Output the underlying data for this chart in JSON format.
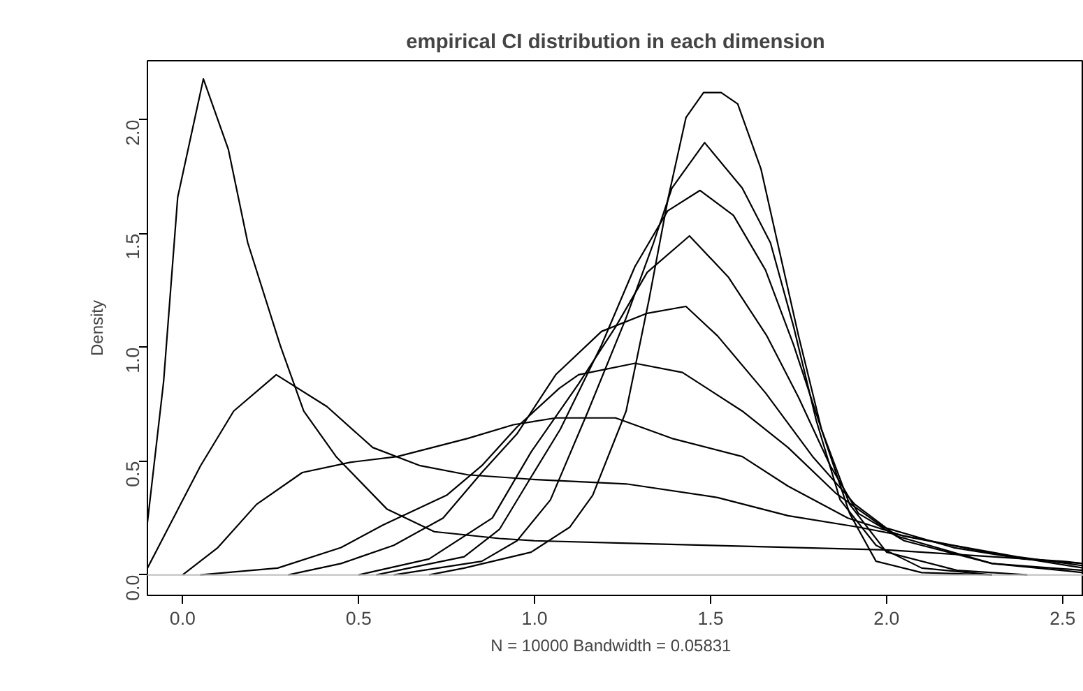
{
  "chart_data": {
    "type": "line",
    "title": "empirical CI distribution in each dimension",
    "xlabel": "N = 10000   Bandwidth = 0.05831",
    "ylabel": "Density",
    "xlim": [
      -0.1,
      2.56
    ],
    "ylim": [
      -0.09,
      2.26
    ],
    "xticks": [
      {
        "value": 0,
        "label": "0.0"
      },
      {
        "value": 0.5,
        "label": "0.5"
      },
      {
        "value": 1,
        "label": "1.0"
      },
      {
        "value": 1.5,
        "label": "1.5"
      },
      {
        "value": 2,
        "label": "2.0"
      },
      {
        "value": 2.5,
        "label": "2.5"
      }
    ],
    "yticks": [
      {
        "value": 0,
        "label": "0.0"
      },
      {
        "value": 0.5,
        "label": "0.5"
      },
      {
        "value": 1,
        "label": "1.0"
      },
      {
        "value": 1.5,
        "label": "1.5"
      },
      {
        "value": 2,
        "label": "2.0"
      }
    ],
    "grid": false,
    "line_style": "solid",
    "marker": "none",
    "ref_lines": [
      {
        "axis": "y",
        "value": 0,
        "color": "#bebebe"
      }
    ],
    "series": [
      {
        "color": "#000000",
        "x": [
          -0.1,
          -0.054,
          -0.014,
          0.059,
          0.13,
          0.185,
          0.277,
          0.344,
          0.436,
          0.58,
          0.715,
          0.9,
          1.0,
          1.25,
          1.5,
          1.75,
          2.0,
          2.2,
          2.5,
          2.56
        ],
        "values": [
          0.23,
          0.85,
          1.66,
          2.18,
          1.87,
          1.46,
          1.01,
          0.72,
          0.52,
          0.29,
          0.19,
          0.16,
          0.15,
          0.14,
          0.13,
          0.12,
          0.11,
          0.09,
          0.06,
          0.05
        ]
      },
      {
        "color": "#000000",
        "x": [
          -0.1,
          0.051,
          0.145,
          0.266,
          0.41,
          0.54,
          0.675,
          0.81,
          0.993,
          1.26,
          1.52,
          1.72,
          1.92,
          2.19,
          2.37,
          2.56
        ],
        "values": [
          0.03,
          0.48,
          0.72,
          0.88,
          0.74,
          0.56,
          0.48,
          0.44,
          0.42,
          0.4,
          0.34,
          0.26,
          0.21,
          0.13,
          0.08,
          0.04
        ]
      },
      {
        "color": "#000000",
        "x": [
          0.0,
          0.1,
          0.21,
          0.34,
          0.476,
          0.61,
          0.81,
          0.94,
          1.06,
          1.23,
          1.39,
          1.59,
          1.72,
          1.89,
          2.05,
          2.32,
          2.56
        ],
        "values": [
          0.0,
          0.12,
          0.31,
          0.45,
          0.495,
          0.52,
          0.6,
          0.66,
          0.69,
          0.69,
          0.6,
          0.52,
          0.39,
          0.25,
          0.17,
          0.09,
          0.03
        ]
      },
      {
        "color": "#000000",
        "x": [
          0.05,
          0.27,
          0.45,
          0.57,
          0.75,
          0.85,
          0.95,
          1.07,
          1.125,
          1.285,
          1.42,
          1.59,
          1.72,
          1.855,
          1.99,
          2.19,
          2.39,
          2.56
        ],
        "values": [
          0.0,
          0.03,
          0.12,
          0.22,
          0.35,
          0.48,
          0.65,
          0.82,
          0.88,
          0.93,
          0.89,
          0.72,
          0.56,
          0.36,
          0.21,
          0.12,
          0.07,
          0.05
        ]
      },
      {
        "color": "#000000",
        "x": [
          0.3,
          0.45,
          0.6,
          0.74,
          0.85,
          0.95,
          1.06,
          1.19,
          1.32,
          1.43,
          1.52,
          1.656,
          1.79,
          1.91,
          2.03,
          2.3,
          2.56
        ],
        "values": [
          0.0,
          0.05,
          0.13,
          0.25,
          0.45,
          0.62,
          0.88,
          1.07,
          1.15,
          1.18,
          1.05,
          0.8,
          0.52,
          0.31,
          0.17,
          0.05,
          0.02
        ]
      },
      {
        "color": "#000000",
        "x": [
          0.5,
          0.7,
          0.88,
          0.99,
          1.125,
          1.23,
          1.32,
          1.44,
          1.55,
          1.66,
          1.75,
          1.84,
          1.92,
          2.05,
          2.3,
          2.56
        ],
        "values": [
          0.0,
          0.07,
          0.25,
          0.54,
          0.84,
          1.09,
          1.33,
          1.49,
          1.31,
          1.05,
          0.78,
          0.48,
          0.27,
          0.15,
          0.05,
          0.01
        ]
      },
      {
        "color": "#000000",
        "x": [
          0.55,
          0.8,
          0.9,
          0.99,
          1.073,
          1.19,
          1.285,
          1.378,
          1.47,
          1.565,
          1.656,
          1.736,
          1.815,
          1.895,
          2.0,
          2.2,
          2.4
        ],
        "values": [
          0.0,
          0.08,
          0.2,
          0.43,
          0.64,
          1.01,
          1.355,
          1.6,
          1.69,
          1.58,
          1.34,
          1.01,
          0.64,
          0.31,
          0.1,
          0.02,
          0.0
        ]
      },
      {
        "color": "#000000",
        "x": [
          0.6,
          0.85,
          0.95,
          1.045,
          1.152,
          1.26,
          1.338,
          1.39,
          1.483,
          1.59,
          1.67,
          1.736,
          1.8,
          1.868,
          1.97,
          2.1,
          2.3
        ],
        "values": [
          0.0,
          0.06,
          0.15,
          0.33,
          0.72,
          1.13,
          1.46,
          1.7,
          1.9,
          1.7,
          1.46,
          1.09,
          0.68,
          0.33,
          0.13,
          0.03,
          0.0
        ]
      },
      {
        "color": "#000000",
        "x": [
          0.7,
          0.8,
          0.99,
          1.1,
          1.165,
          1.26,
          1.325,
          1.38,
          1.43,
          1.48,
          1.53,
          1.577,
          1.643,
          1.696,
          1.75,
          1.815,
          1.895,
          1.97,
          2.1,
          2.3
        ],
        "values": [
          0.0,
          0.03,
          0.1,
          0.21,
          0.35,
          0.72,
          1.21,
          1.66,
          2.01,
          2.12,
          2.12,
          2.07,
          1.785,
          1.42,
          1.05,
          0.64,
          0.27,
          0.06,
          0.01,
          0.0
        ]
      }
    ]
  }
}
